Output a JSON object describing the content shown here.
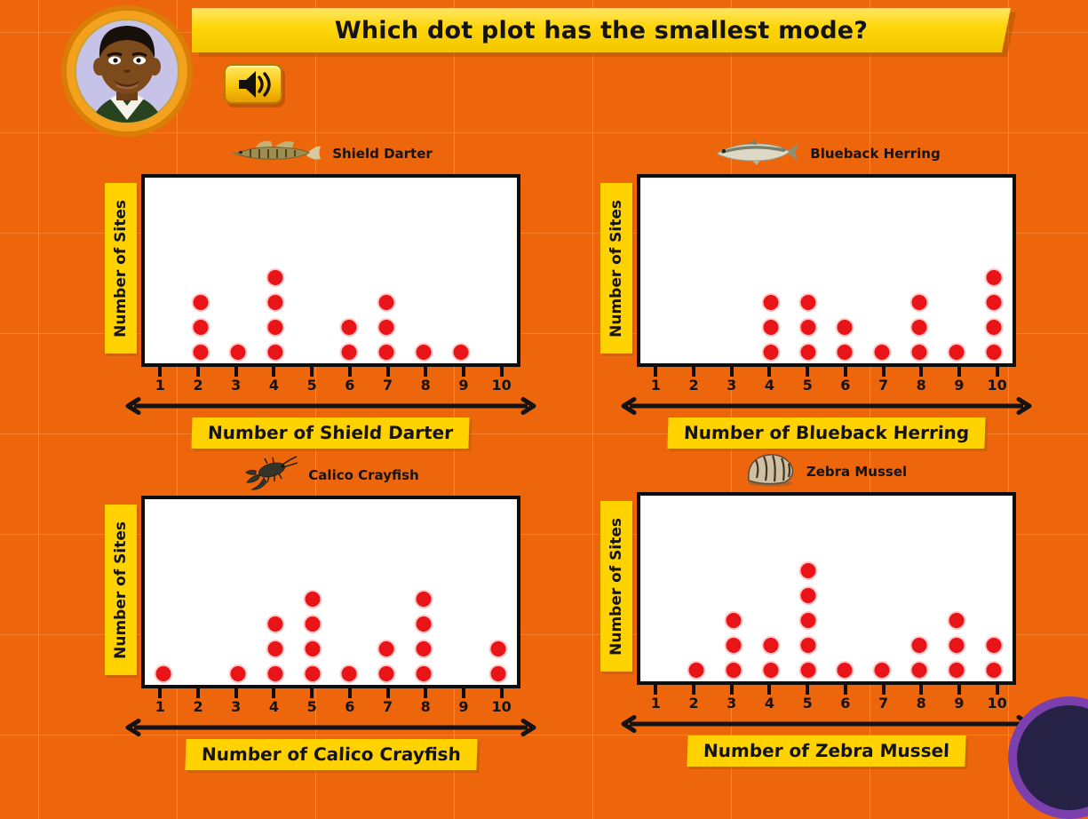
{
  "header": {
    "question": "Which dot plot has the smallest mode?"
  },
  "icons": {
    "speaker": "speaker-with-sound-waves",
    "avatar": "cartoon-boy-avatar",
    "axis_arrow": "double-headed-arrow",
    "animal_0": "darter-fish",
    "animal_1": "herring-fish",
    "animal_2": "crayfish",
    "animal_3": "striped-mussel-shell",
    "corner": "partial-purple-circle-button"
  },
  "colors": {
    "background_orange": "#ee660c",
    "banner_yellow": "#ffd200",
    "dot_red": "#e81417",
    "text_black": "#141414",
    "plot_white": "#ffffff",
    "corner_purple": "#7b3fae",
    "corner_navy": "#262245"
  },
  "chart_data": [
    {
      "type": "dot",
      "species": "Shield Darter",
      "xlabel": "Number of Shield Darter",
      "ylabel": "Number of Sites",
      "categories": [
        1,
        2,
        3,
        4,
        5,
        6,
        7,
        8,
        9,
        10
      ],
      "values": [
        0,
        3,
        1,
        4,
        0,
        2,
        3,
        1,
        1,
        0
      ],
      "xlim": [
        1,
        10
      ],
      "grid": false,
      "dot_color": "#e81417"
    },
    {
      "type": "dot",
      "species": "Blueback Herring",
      "xlabel": "Number of Blueback Herring",
      "ylabel": "Number of Sites",
      "categories": [
        1,
        2,
        3,
        4,
        5,
        6,
        7,
        8,
        9,
        10
      ],
      "values": [
        0,
        0,
        0,
        3,
        3,
        2,
        1,
        3,
        1,
        4
      ],
      "xlim": [
        1,
        10
      ],
      "grid": false,
      "dot_color": "#e81417"
    },
    {
      "type": "dot",
      "species": "Calico Crayfish",
      "xlabel": "Number of Calico Crayfish",
      "ylabel": "Number of Sites",
      "categories": [
        1,
        2,
        3,
        4,
        5,
        6,
        7,
        8,
        9,
        10
      ],
      "values": [
        1,
        0,
        1,
        3,
        4,
        1,
        2,
        4,
        0,
        2
      ],
      "xlim": [
        1,
        10
      ],
      "grid": false,
      "dot_color": "#e81417"
    },
    {
      "type": "dot",
      "species": "Zebra Mussel",
      "xlabel": "Number of Zebra Mussel",
      "ylabel": "Number of Sites",
      "categories": [
        1,
        2,
        3,
        4,
        5,
        6,
        7,
        8,
        9,
        10
      ],
      "values": [
        0,
        1,
        3,
        2,
        5,
        1,
        1,
        2,
        3,
        2
      ],
      "xlim": [
        1,
        10
      ],
      "grid": false,
      "dot_color": "#e81417"
    }
  ]
}
